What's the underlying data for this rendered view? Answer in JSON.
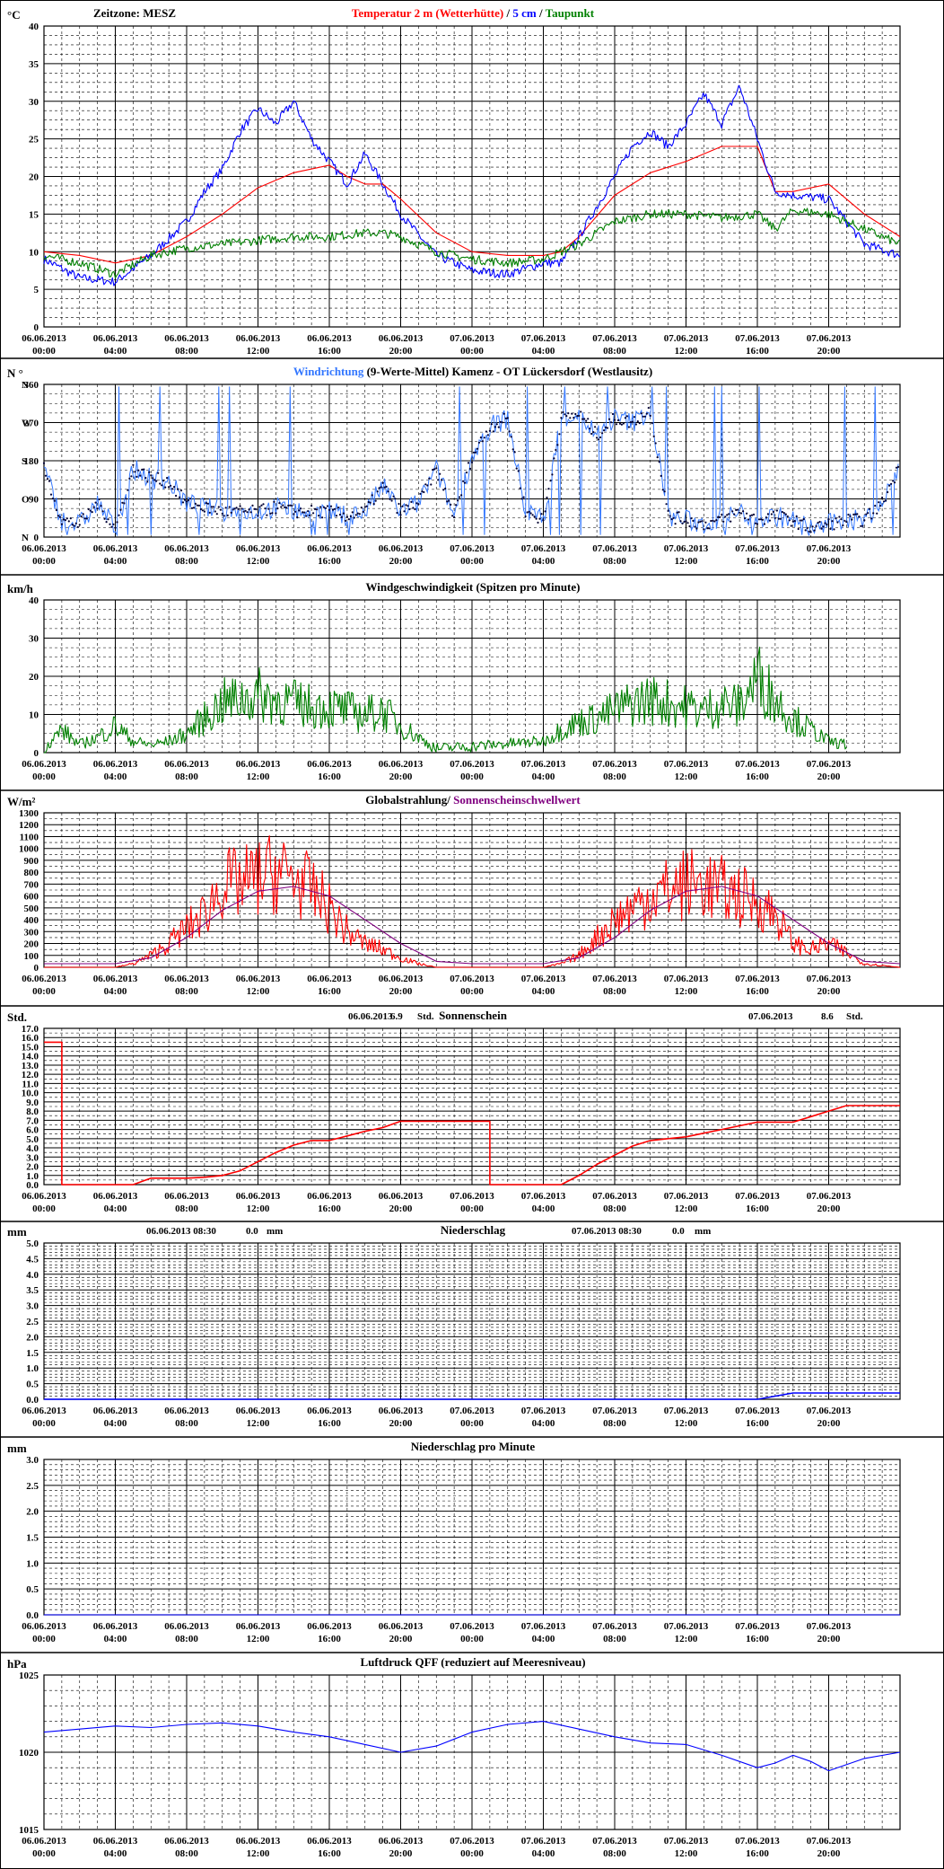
{
  "colors": {
    "black": "#000000",
    "red": "#ff0000",
    "blue": "#0000ff",
    "lightblue": "#3377ff",
    "green": "#008000",
    "purple": "#800080",
    "navy": "#000080",
    "grid": "#000000"
  },
  "x_labels": [
    {
      "date": "06.06.2013",
      "time": "00:00"
    },
    {
      "date": "06.06.2013",
      "time": "04:00"
    },
    {
      "date": "06.06.2013",
      "time": "08:00"
    },
    {
      "date": "06.06.2013",
      "time": "12:00"
    },
    {
      "date": "06.06.2013",
      "time": "16:00"
    },
    {
      "date": "06.06.2013",
      "time": "20:00"
    },
    {
      "date": "07.06.2013",
      "time": "00:00"
    },
    {
      "date": "07.06.2013",
      "time": "04:00"
    },
    {
      "date": "07.06.2013",
      "time": "08:00"
    },
    {
      "date": "07.06.2013",
      "time": "12:00"
    },
    {
      "date": "07.06.2013",
      "time": "16:00"
    },
    {
      "date": "07.06.2013",
      "time": "20:00"
    }
  ],
  "panels": {
    "temperature": {
      "unit": "°C",
      "timezone": "Zeitzone: MESZ",
      "title_parts": [
        {
          "text": "Temperatur 2 m (Wetterhütte)",
          "color": "#ff0000"
        },
        {
          "text": "  /  ",
          "color": "#000000"
        },
        {
          "text": "5 cm",
          "color": "#0000ff"
        },
        {
          "text": " / ",
          "color": "#000000"
        },
        {
          "text": "Taupunkt",
          "color": "#008000"
        }
      ],
      "y_ticks": [
        "0",
        "5",
        "10",
        "15",
        "20",
        "25",
        "30",
        "35",
        "40"
      ]
    },
    "wind_direction": {
      "unit": "N °",
      "title_parts": [
        {
          "text": "Windrichtung",
          "color": "#3377ff"
        },
        {
          "text": " (9-Werte-Mittel)",
          "color": "#000000"
        },
        {
          "text": "            Kamenz - OT Lückersdorf (Westlausitz)",
          "color": "#000000"
        }
      ],
      "y_ticks": [
        "0",
        "90",
        "180",
        "270",
        "360"
      ],
      "y_dirs": [
        "N",
        "O",
        "S",
        "W",
        "N"
      ]
    },
    "wind_speed": {
      "unit": "km/h",
      "title": "Windgeschwindigkeit (Spitzen pro Minute)",
      "y_ticks": [
        "0",
        "10",
        "20",
        "30",
        "40"
      ]
    },
    "radiation": {
      "unit": "W/m²",
      "title_parts": [
        {
          "text": "Globalstrahlung/ ",
          "color": "#000000"
        },
        {
          "text": "Sonnenscheinschwellwert",
          "color": "#800080"
        }
      ],
      "y_ticks": [
        "0",
        "100",
        "200",
        "300",
        "400",
        "500",
        "600",
        "700",
        "800",
        "900",
        "1000",
        "1100",
        "1200",
        "1300"
      ]
    },
    "sunshine": {
      "unit": "Std.",
      "title": "Sonnenschein",
      "day1": {
        "date": "06.06.2013",
        "value": "6.9",
        "unit": "Std."
      },
      "day2": {
        "date": "07.06.2013",
        "value": "8.6",
        "unit": "Std."
      },
      "y_ticks": [
        "0.0",
        "1.0",
        "2.0",
        "3.0",
        "4.0",
        "5.0",
        "6.0",
        "7.0",
        "8.0",
        "9.0",
        "10.0",
        "11.0",
        "12.0",
        "13.0",
        "14.0",
        "15.0",
        "16.0",
        "17.0"
      ]
    },
    "precip": {
      "unit": "mm",
      "title": "Niederschlag",
      "day1": {
        "date": "06.06.2013 08:30",
        "value": "0.0",
        "unit": "mm"
      },
      "day2": {
        "date": "07.06.2013 08:30",
        "value": "0.0",
        "unit": "mm"
      },
      "y_ticks": [
        "0.0",
        "0.5",
        "1.0",
        "1.5",
        "2.0",
        "2.5",
        "3.0",
        "3.5",
        "4.0",
        "4.5",
        "5.0"
      ]
    },
    "precip_minute": {
      "unit": "mm",
      "title": "Niederschlag pro Minute",
      "y_ticks": [
        "0.0",
        "0.5",
        "1.0",
        "1.5",
        "2.0",
        "2.5",
        "3.0"
      ]
    },
    "pressure": {
      "unit": "hPa",
      "title": "Luftdruck QFF (reduziert auf Meeresniveau)",
      "y_ticks": [
        "1015",
        "1020",
        "1025"
      ]
    }
  },
  "chart_data": [
    {
      "type": "line",
      "name": "temperature",
      "x_unit": "hours since 06.06.2013 00:00",
      "ylim": [
        0,
        40
      ],
      "series": [
        {
          "name": "Temperatur 2 m (Wetterhütte)",
          "color": "#ff0000",
          "x": [
            0,
            2,
            4,
            6,
            8,
            10,
            12,
            14,
            16,
            17,
            18,
            19,
            20,
            22,
            24,
            26,
            28,
            29,
            30,
            32,
            34,
            36,
            38,
            40,
            41,
            42,
            44,
            46,
            48
          ],
          "y": [
            10,
            9.5,
            8.5,
            9.5,
            12,
            15,
            18.5,
            20.5,
            21.5,
            20,
            19,
            19,
            17,
            12.5,
            10,
            9.5,
            9.5,
            10,
            12,
            17.5,
            20.5,
            22,
            24,
            24,
            18,
            18,
            19,
            15,
            12
          ]
        },
        {
          "name": "5 cm",
          "color": "#0000ff",
          "x": [
            0,
            2,
            4,
            6,
            8,
            9,
            10,
            11,
            12,
            13,
            14,
            15,
            16,
            17,
            18,
            19,
            20,
            22,
            24,
            26,
            28,
            29,
            30,
            31,
            32,
            33,
            34,
            35,
            36,
            37,
            38,
            39,
            40,
            41,
            42,
            44,
            46,
            48
          ],
          "y": [
            9,
            6.5,
            6,
            9.5,
            14,
            18,
            21,
            26,
            29,
            27,
            30,
            25,
            22,
            19,
            23,
            19,
            15,
            9.5,
            7.5,
            7,
            8.5,
            8.5,
            12,
            16,
            20,
            24,
            26,
            24,
            27,
            31,
            27,
            32,
            25,
            18,
            17.5,
            17,
            11,
            9.5
          ]
        },
        {
          "name": "Taupunkt",
          "color": "#008000",
          "x": [
            0,
            2,
            4,
            6,
            8,
            10,
            12,
            14,
            16,
            18,
            19,
            20,
            22,
            24,
            26,
            28,
            30,
            32,
            34,
            36,
            38,
            40,
            41,
            42,
            44,
            46,
            48
          ],
          "y": [
            9.5,
            8.5,
            7,
            9.5,
            10.5,
            11,
            11.5,
            12,
            12,
            12.5,
            12.5,
            12,
            10,
            9,
            8.5,
            9,
            11,
            14,
            15,
            15,
            14.5,
            15,
            13,
            15.5,
            15,
            13,
            11
          ]
        }
      ]
    },
    {
      "type": "scatter",
      "name": "wind_direction",
      "ylim": [
        0,
        360
      ],
      "series": [
        {
          "name": "Windrichtung",
          "color": "#3377ff",
          "x": [
            0,
            1,
            2,
            3,
            4,
            5,
            6,
            7,
            8,
            9,
            10,
            11,
            12,
            13,
            14,
            15,
            16,
            17,
            18,
            19,
            20,
            21,
            22,
            23,
            24,
            25,
            26,
            27,
            28,
            29,
            30,
            31,
            32,
            33,
            34,
            35,
            36,
            37,
            38,
            39,
            40,
            41,
            42,
            43,
            44,
            45,
            46,
            47,
            48
          ],
          "y": [
            160,
            40,
            30,
            80,
            20,
            160,
            140,
            130,
            80,
            70,
            60,
            60,
            60,
            70,
            60,
            60,
            60,
            50,
            60,
            120,
            60,
            80,
            160,
            50,
            190,
            260,
            280,
            60,
            40,
            280,
            290,
            240,
            280,
            270,
            300,
            50,
            40,
            30,
            40,
            60,
            40,
            50,
            40,
            20,
            30,
            40,
            40,
            80,
            170
          ]
        }
      ]
    },
    {
      "type": "line",
      "name": "wind_speed",
      "ylim": [
        0,
        40
      ],
      "series": [
        {
          "name": "Windgeschwindigkeit",
          "color": "#008000",
          "x": [
            0,
            1,
            2,
            3,
            4,
            5,
            6,
            7,
            8,
            9,
            10,
            11,
            12,
            13,
            14,
            15,
            16,
            17,
            18,
            19,
            20,
            21,
            22,
            28,
            29,
            30,
            31,
            32,
            33,
            34,
            35,
            36,
            37,
            38,
            39,
            40,
            41,
            42,
            43,
            44,
            45
          ],
          "y": [
            1,
            6,
            2,
            4,
            7,
            3,
            2,
            3,
            5,
            9,
            13,
            14,
            15,
            14,
            13,
            12,
            12,
            11,
            10,
            11,
            7,
            4,
            1,
            3,
            6,
            8,
            9,
            11,
            13,
            14,
            13,
            12,
            11,
            13,
            12,
            20,
            14,
            9,
            6,
            3,
            2
          ]
        }
      ]
    },
    {
      "type": "line",
      "name": "radiation",
      "ylim": [
        0,
        1300
      ],
      "series": [
        {
          "name": "Globalstrahlung",
          "color": "#ff0000",
          "x": [
            0,
            4,
            5,
            6,
            7,
            8,
            9,
            10,
            11,
            12,
            13,
            14,
            15,
            16,
            17,
            18,
            19,
            20,
            21,
            22,
            24,
            28,
            29,
            30,
            31,
            32,
            33,
            34,
            35,
            36,
            37,
            38,
            39,
            40,
            41,
            42,
            43,
            44,
            45,
            46,
            48
          ],
          "y": [
            0,
            0,
            30,
            100,
            200,
            330,
            450,
            700,
            700,
            750,
            800,
            750,
            650,
            500,
            300,
            200,
            150,
            80,
            30,
            0,
            0,
            0,
            30,
            100,
            250,
            400,
            500,
            600,
            650,
            700,
            700,
            650,
            600,
            550,
            450,
            200,
            150,
            200,
            120,
            30,
            0
          ]
        },
        {
          "name": "Sonnenscheinschwellwert",
          "color": "#800080",
          "x": [
            0,
            4,
            6,
            8,
            10,
            12,
            14,
            16,
            18,
            20,
            22,
            24,
            28,
            30,
            32,
            34,
            36,
            38,
            40,
            42,
            44,
            46,
            48
          ],
          "y": [
            30,
            30,
            80,
            250,
            480,
            640,
            680,
            600,
            400,
            200,
            50,
            30,
            30,
            80,
            250,
            480,
            640,
            680,
            600,
            400,
            200,
            50,
            30
          ]
        }
      ]
    },
    {
      "type": "line",
      "name": "sunshine",
      "ylim": [
        0,
        17
      ],
      "series": [
        {
          "name": "Sonnenschein",
          "color": "#ff0000",
          "x": [
            0,
            1,
            1,
            5,
            6,
            7,
            8,
            9,
            10,
            11,
            12,
            13,
            14,
            15,
            16,
            17,
            18,
            19,
            20,
            21,
            22,
            23,
            24,
            25,
            25,
            29,
            30,
            31,
            32,
            33,
            34,
            35,
            36,
            37,
            38,
            39,
            40,
            41,
            42,
            43,
            44,
            45,
            46,
            47,
            48
          ],
          "y": [
            15.5,
            15.5,
            0,
            0,
            0.7,
            0.7,
            0.7,
            0.8,
            1.0,
            1.5,
            2.5,
            3.5,
            4.3,
            4.8,
            4.8,
            5.3,
            5.8,
            6.2,
            6.9,
            6.9,
            6.9,
            6.9,
            6.9,
            6.9,
            0,
            0,
            1.0,
            2.2,
            3.2,
            4.2,
            4.8,
            5.0,
            5.2,
            5.6,
            6.0,
            6.4,
            6.8,
            6.8,
            6.8,
            7.4,
            8.0,
            8.6,
            8.6,
            8.6,
            8.6
          ]
        }
      ]
    },
    {
      "type": "line",
      "name": "precip",
      "ylim": [
        0,
        5
      ],
      "series": [
        {
          "name": "Niederschlag",
          "color": "#0000ff",
          "x": [
            0,
            40,
            42,
            48
          ],
          "y": [
            0,
            0,
            0.2,
            0.2
          ]
        }
      ]
    },
    {
      "type": "line",
      "name": "precip_minute",
      "ylim": [
        0,
        3
      ],
      "series": [
        {
          "name": "Niederschlag pro Minute",
          "color": "#0000ff",
          "x": [
            0,
            48
          ],
          "y": [
            0,
            0
          ]
        }
      ]
    },
    {
      "type": "line",
      "name": "pressure",
      "ylim": [
        1015,
        1025
      ],
      "series": [
        {
          "name": "Luftdruck QFF",
          "color": "#0000ff",
          "x": [
            0,
            2,
            4,
            6,
            8,
            10,
            12,
            14,
            16,
            18,
            20,
            22,
            24,
            26,
            28,
            30,
            32,
            34,
            36,
            38,
            40,
            41,
            42,
            43,
            44,
            46,
            48
          ],
          "y": [
            1021.3,
            1021.5,
            1021.7,
            1021.6,
            1021.8,
            1021.9,
            1021.7,
            1021.3,
            1021,
            1020.5,
            1020,
            1020.4,
            1021.3,
            1021.8,
            1022,
            1021.5,
            1021,
            1020.6,
            1020.5,
            1019.8,
            1019,
            1019.3,
            1019.8,
            1019.4,
            1018.8,
            1019.6,
            1020
          ]
        }
      ]
    }
  ]
}
